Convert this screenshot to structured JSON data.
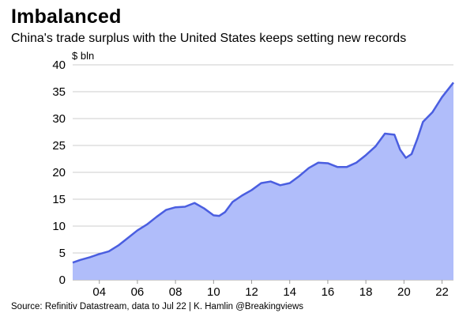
{
  "header": {
    "title": "Imbalanced",
    "subtitle": "China's trade surplus with the United States keeps setting new records"
  },
  "footer": {
    "source": "Source: Refinitiv Datastream, data to Jul 22 | K. Hamlin @Breakingviews"
  },
  "colors": {
    "fill": "#b0bdfa",
    "line": "#4a5ee0",
    "grid": "#cccccc"
  },
  "chart_data": {
    "type": "area",
    "title": "Imbalanced",
    "subtitle": "China's trade surplus with the United States keeps setting new records",
    "ylabel": "$ bln",
    "xlabel": "",
    "ylim": [
      0,
      40
    ],
    "xlim": [
      2002.6,
      2022.6
    ],
    "yticks": [
      0,
      5,
      10,
      15,
      20,
      25,
      30,
      35,
      40
    ],
    "xticks": [
      {
        "value": 2004,
        "label": "04"
      },
      {
        "value": 2006,
        "label": "06"
      },
      {
        "value": 2008,
        "label": "08"
      },
      {
        "value": 2010,
        "label": "10"
      },
      {
        "value": 2012,
        "label": "12"
      },
      {
        "value": 2014,
        "label": "14"
      },
      {
        "value": 2016,
        "label": "16"
      },
      {
        "value": 2018,
        "label": "18"
      },
      {
        "value": 2020,
        "label": "20"
      },
      {
        "value": 2022,
        "label": "22"
      }
    ],
    "grid": "horizontal",
    "legend": "none",
    "series": [
      {
        "x": [
          2002.6,
          2003.0,
          2003.5,
          2004.0,
          2004.5,
          2005.0,
          2005.5,
          2006.0,
          2006.5,
          2007.0,
          2007.5,
          2008.0,
          2008.5,
          2009.0,
          2009.5,
          2010.0,
          2010.3,
          2010.6,
          2011.0,
          2011.5,
          2012.0,
          2012.5,
          2013.0,
          2013.5,
          2014.0,
          2014.5,
          2015.0,
          2015.5,
          2016.0,
          2016.5,
          2017.0,
          2017.5,
          2018.0,
          2018.5,
          2019.0,
          2019.5,
          2019.8,
          2020.1,
          2020.4,
          2020.7,
          2021.0,
          2021.5,
          2022.0,
          2022.4,
          2022.6
        ],
        "y": [
          3.2,
          3.7,
          4.2,
          4.8,
          5.3,
          6.4,
          7.8,
          9.2,
          10.3,
          11.7,
          13.0,
          13.5,
          13.6,
          14.3,
          13.3,
          12.0,
          11.9,
          12.6,
          14.5,
          15.7,
          16.7,
          18.0,
          18.3,
          17.6,
          18.0,
          19.3,
          20.8,
          21.8,
          21.7,
          21.0,
          21.0,
          21.8,
          23.2,
          24.8,
          27.2,
          27.0,
          24.2,
          22.7,
          23.4,
          26.2,
          29.4,
          31.2,
          34.0,
          35.8,
          36.7
        ]
      }
    ]
  }
}
